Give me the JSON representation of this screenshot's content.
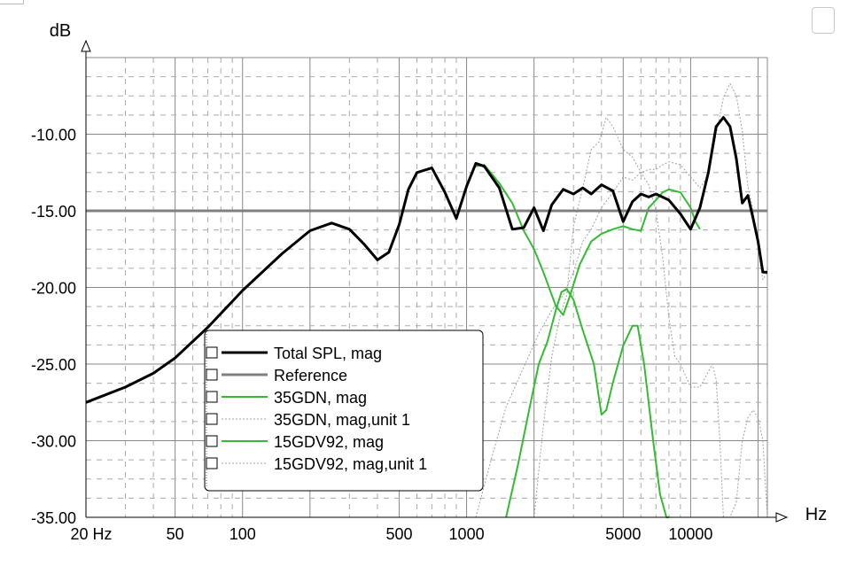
{
  "chart_data": {
    "type": "line",
    "xscale": "log",
    "xlim": [
      20,
      22000
    ],
    "ylim": [
      -35,
      -5
    ],
    "grid": true,
    "ylabel": "dB",
    "xlabel": "Hz",
    "xticks": [
      20,
      50,
      100,
      500,
      1000,
      5000,
      10000
    ],
    "xtick_labels": [
      "20 Hz",
      "50",
      "100",
      "500",
      "1000",
      "5000",
      "10000"
    ],
    "yticks": [
      -10,
      -15,
      -20,
      -25,
      -30,
      -35
    ],
    "ytick_labels": [
      "-10.00",
      "-15.00",
      "-20.00",
      "-25.00",
      "-30.00",
      "-35.00"
    ],
    "legend_position": "lower-left",
    "colors": {
      "total": "#000000",
      "reference": "#808080",
      "green": "#33bb33",
      "dotted": "#a0a0a0"
    },
    "series": [
      {
        "name": "Total SPL, mag",
        "color": "#000000",
        "style": "solid",
        "x": [
          20,
          30,
          40,
          50,
          70,
          100,
          150,
          200,
          250,
          300,
          350,
          400,
          450,
          500,
          550,
          600,
          700,
          800,
          900,
          1000,
          1100,
          1200,
          1400,
          1600,
          1800,
          2000,
          2200,
          2400,
          2700,
          3000,
          3300,
          3600,
          4000,
          4500,
          5000,
          5500,
          6000,
          6500,
          7000,
          8000,
          9000,
          10000,
          11000,
          12000,
          13000,
          14000,
          15000,
          16000,
          17000,
          18000,
          19000,
          20000,
          21000,
          22000
        ],
        "values": [
          -27.5,
          -26.5,
          -25.6,
          -24.6,
          -22.6,
          -20.2,
          -17.8,
          -16.3,
          -15.8,
          -16.2,
          -17.2,
          -18.2,
          -17.7,
          -15.9,
          -13.6,
          -12.5,
          -12.2,
          -13.8,
          -15.5,
          -13.4,
          -11.9,
          -12.1,
          -13.5,
          -16.2,
          -16.1,
          -14.8,
          -16.3,
          -14.6,
          -13.6,
          -13.9,
          -13.5,
          -13.9,
          -13.3,
          -13.7,
          -15.7,
          -14.4,
          -13.9,
          -14.1,
          -13.9,
          -14.3,
          -15.2,
          -16.2,
          -14.8,
          -12.5,
          -9.5,
          -8.9,
          -9.5,
          -11.6,
          -14.5,
          -14.0,
          -15.5,
          -17.0,
          -19.0,
          -19.0
        ]
      },
      {
        "name": "Reference",
        "color": "#808080",
        "style": "solid",
        "x": [
          20,
          22000
        ],
        "values": [
          -15,
          -15
        ]
      },
      {
        "name": "35GDN, mag",
        "color": "#33bb33",
        "style": "solid",
        "x": [
          1100,
          1200,
          1400,
          1600,
          1800,
          2000,
          2200,
          2500,
          2700,
          2900,
          3200,
          3600,
          4000,
          4500,
          5000,
          5500,
          6000,
          6500,
          7000,
          7500,
          8000,
          9000,
          10000,
          10500,
          11000
        ],
        "values": [
          -12.1,
          -12.0,
          -13.2,
          -14.5,
          -16.3,
          -17.5,
          -19.0,
          -21.2,
          -21.8,
          -20.5,
          -18.5,
          -17.0,
          -16.5,
          -16.2,
          -16.0,
          -16.2,
          -16.3,
          -14.8,
          -14.3,
          -13.8,
          -13.6,
          -13.8,
          -14.8,
          -15.7,
          -16.2
        ]
      },
      {
        "name": "35GDN, mag,unit 1",
        "color": "#a0a0a0",
        "style": "dotted",
        "x": [
          1100,
          1300,
          1500,
          1800,
          2100,
          2400,
          2700,
          3000,
          3300,
          3600,
          4000,
          4500,
          5000,
          5500,
          6000,
          6500,
          7000,
          7500,
          8000,
          9000,
          10000,
          11000,
          12000,
          13000,
          14000,
          15000,
          16000,
          17000,
          18000,
          19000,
          20000,
          21000,
          22000
        ],
        "values": [
          -35.0,
          -31.0,
          -27.8,
          -25.2,
          -23.0,
          -21.5,
          -20.5,
          -19.0,
          -17.0,
          -16.2,
          -14.8,
          -13.8,
          -12.8,
          -13.0,
          -12.5,
          -12.3,
          -12.3,
          -12.0,
          -11.8,
          -12.0,
          -12.8,
          -13.5,
          -12.7,
          -10.0,
          -7.6,
          -6.7,
          -7.5,
          -9.8,
          -13.4,
          -15.0,
          -17.5,
          -19.5,
          -19.0
        ]
      },
      {
        "name": "15GDV92, mag",
        "color": "#33bb33",
        "style": "solid",
        "x": [
          1500,
          1700,
          1900,
          2100,
          2300,
          2500,
          2650,
          2800,
          3000,
          3300,
          3700,
          4000,
          4200,
          4500,
          5000,
          5500,
          5800,
          6200,
          6800,
          7300,
          7800,
          8000
        ],
        "values": [
          -35.0,
          -31.5,
          -28.0,
          -25.0,
          -23.5,
          -21.5,
          -20.3,
          -20.1,
          -20.8,
          -22.8,
          -25.0,
          -28.3,
          -28.0,
          -26.2,
          -23.8,
          -22.5,
          -22.5,
          -25.0,
          -30.0,
          -33.5,
          -35.0,
          -35.0
        ]
      },
      {
        "name": "15GDV92, mag,unit 1",
        "color": "#a0a0a0",
        "style": "dotted",
        "x": [
          2000,
          2200,
          2400,
          2600,
          2800,
          3000,
          3300,
          3600,
          3900,
          4200,
          4500,
          5000,
          5500,
          6000,
          6500,
          7000,
          7500,
          8000,
          8500,
          9000,
          10000,
          11000,
          12000,
          12500,
          13000,
          13500,
          14000,
          15000,
          16000,
          17000,
          18000,
          19000,
          20000,
          21000,
          22000
        ],
        "values": [
          -35.0,
          -29.0,
          -24.5,
          -22.0,
          -20.5,
          -16.0,
          -13.5,
          -11.0,
          -10.5,
          -8.9,
          -9.5,
          -11.0,
          -11.5,
          -12.5,
          -13.3,
          -15.0,
          -18.0,
          -22.0,
          -24.5,
          -25.0,
          -26.5,
          -26.5,
          -25.5,
          -25.0,
          -26.0,
          -30.0,
          -35.0,
          -35.0,
          -34.0,
          -30.0,
          -28.5,
          -28.0,
          -28.5,
          -30.0,
          -35.0
        ]
      }
    ]
  },
  "legend": {
    "items": [
      {
        "label": "Total SPL, mag",
        "color": "#000000",
        "style": "solid",
        "width": 3
      },
      {
        "label": "Reference",
        "color": "#808080",
        "style": "solid",
        "width": 3
      },
      {
        "label": "35GDN, mag",
        "color": "#33bb33",
        "style": "solid",
        "width": 2
      },
      {
        "label": "35GDN, mag,unit 1",
        "color": "#a0a0a0",
        "style": "dotted",
        "width": 1
      },
      {
        "label": "15GDV92, mag",
        "color": "#33bb33",
        "style": "solid",
        "width": 2
      },
      {
        "label": "15GDV92, mag,unit 1",
        "color": "#a0a0a0",
        "style": "dotted",
        "width": 1
      }
    ]
  }
}
